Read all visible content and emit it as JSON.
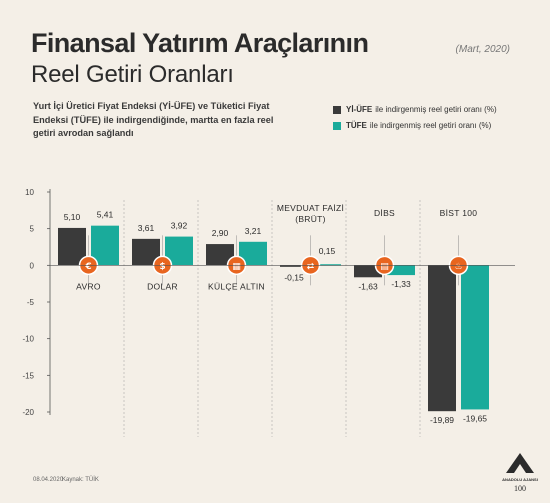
{
  "header": {
    "title": "Finansal Yatırım Araçlarının",
    "subtitle": "Reel Getiri Oranları",
    "date": "(Mart, 2020)",
    "description": "Yurt İçi Üretici Fiyat Endeksi (Yİ-ÜFE) ve Tüketici Fiyat Endeksi (TÜFE) ile indirgendiğinde, martta en fazla reel getiri avrodan sağlandı"
  },
  "legend": [
    {
      "bold": "Yİ-ÜFE",
      "text": "ile indirgenmiş reel getiri oranı (%)",
      "color": "#3a3a3a"
    },
    {
      "bold": "TÜFE",
      "text": "ile indirgenmiş reel getiri oranı (%)",
      "color": "#1aab9b"
    }
  ],
  "footer": {
    "date": "08.04.2020",
    "source": "Kaynak: TÜİK"
  },
  "logo": {
    "name": "ANADOLU AJANSI",
    "mark": "AA",
    "sub": "100"
  },
  "chart_data": {
    "type": "bar",
    "categories": [
      "AVRO",
      "DOLAR",
      "KÜLÇE ALTIN",
      "MEVDUAT FAİZİ (BRÜT)",
      "DİBS",
      "BİST 100"
    ],
    "category_icons": [
      "euro-icon",
      "dollar-icon",
      "gold-bars-icon",
      "handshake-icon",
      "document-icon",
      "fire-icon"
    ],
    "series": [
      {
        "name": "Yİ-ÜFE",
        "color": "#3a3a3a",
        "values": [
          5.1,
          3.61,
          2.9,
          -0.15,
          -1.63,
          -19.89
        ],
        "labels": [
          "5,10",
          "3,61",
          "2,90",
          "-0,15",
          "-1,63",
          "-19,89"
        ]
      },
      {
        "name": "TÜFE",
        "color": "#1aab9b",
        "values": [
          5.41,
          3.92,
          3.21,
          0.15,
          -1.33,
          -19.65
        ],
        "labels": [
          "5,41",
          "3,92",
          "3,21",
          "0,15",
          "-1,33",
          "-19,65"
        ]
      }
    ],
    "yticks": [
      10,
      5,
      0,
      -5,
      -10,
      -15,
      -20
    ],
    "ylim": [
      -20,
      10
    ],
    "accent_color": "#e8651f",
    "grid": false
  }
}
